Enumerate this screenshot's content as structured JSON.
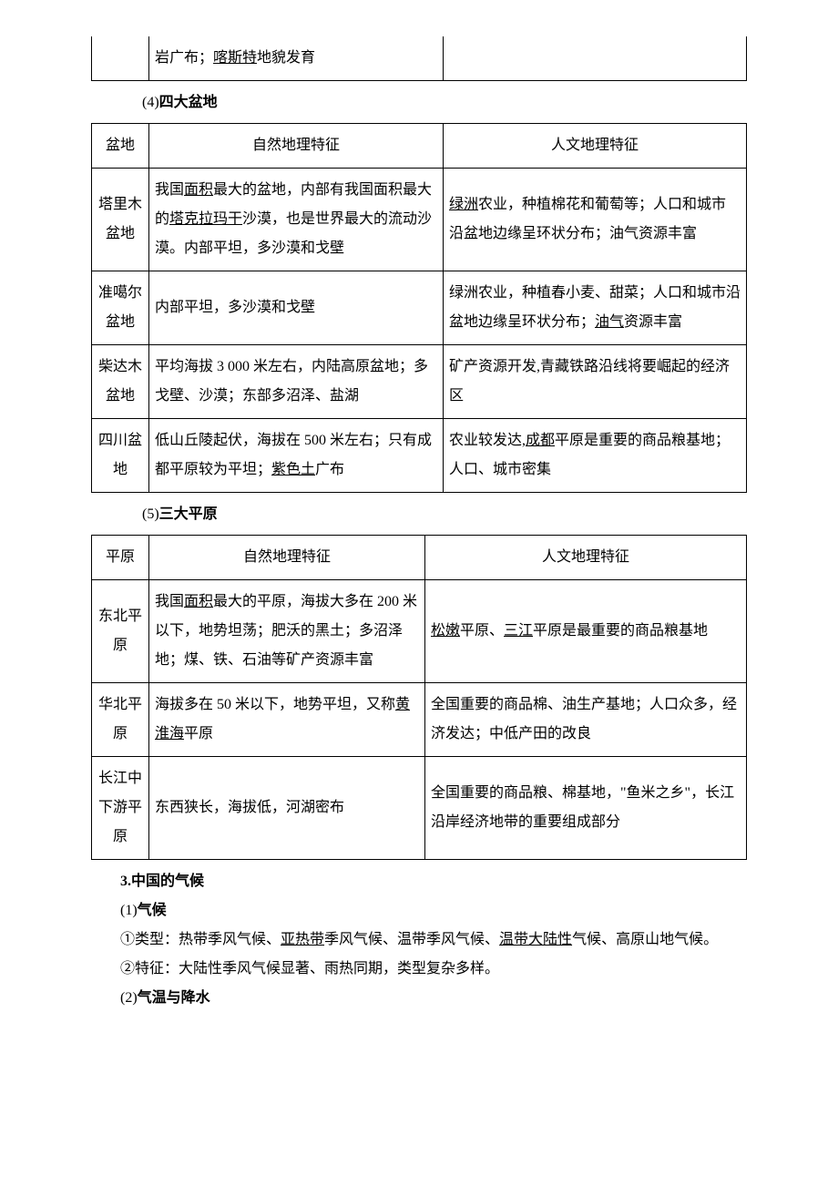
{
  "frag_row": {
    "c1": "",
    "c2_pre": "岩广布；",
    "c2_u": "喀斯特",
    "c2_post": "地貌发育",
    "c3": ""
  },
  "h_basins": "(4)四大盆地",
  "basins": {
    "headers": [
      "盆地",
      "自然地理特征",
      "人文地理特征"
    ],
    "rows": [
      {
        "name": "塔里木盆地",
        "nat_parts": [
          {
            "t": "我国"
          },
          {
            "t": "面积",
            "u": true
          },
          {
            "t": "最大的盆地，内部有我国面积最大的"
          },
          {
            "t": "塔克拉玛干",
            "u": true
          },
          {
            "t": "沙漠，也是世界最大的流动沙漠。内部平坦，多沙漠和戈壁"
          }
        ],
        "hum_parts": [
          {
            "t": "绿洲",
            "u": true
          },
          {
            "t": "农业，种植棉花和葡萄等；人口和城市沿盆地边缘呈环状分布；油气资源丰富"
          }
        ]
      },
      {
        "name": "准噶尔盆地",
        "nat_parts": [
          {
            "t": "内部平坦，多沙漠和戈壁"
          }
        ],
        "hum_parts": [
          {
            "t": "绿洲农业，种植春小麦、甜菜；人口和城市沿盆地边缘呈环状分布；"
          },
          {
            "t": "油气",
            "u": true
          },
          {
            "t": "资源丰富"
          }
        ]
      },
      {
        "name": "柴达木盆地",
        "nat_parts": [
          {
            "t": "平均海拔 3 000 米左右，内陆高原盆地；多戈壁、沙漠；东部多沼泽、盐湖"
          }
        ],
        "hum_parts": [
          {
            "t": "矿产资源开发,青藏铁路沿线将要崛起的经济区"
          }
        ]
      },
      {
        "name": "四川盆地",
        "nat_parts": [
          {
            "t": "低山丘陵起伏，海拔在 500 米左右；只有成都平原较为平坦；"
          },
          {
            "t": "紫色土",
            "u": true
          },
          {
            "t": "广布"
          }
        ],
        "hum_parts": [
          {
            "t": "农业较发达,"
          },
          {
            "t": "成都",
            "u": true
          },
          {
            "t": "平原是重要的商品粮基地；人口、城市密集"
          }
        ]
      }
    ]
  },
  "h_plains": "(5)三大平原",
  "plains": {
    "headers": [
      "平原",
      "自然地理特征",
      "人文地理特征"
    ],
    "rows": [
      {
        "name": "东北平原",
        "nat_parts": [
          {
            "t": "我国"
          },
          {
            "t": "面积",
            "u": true
          },
          {
            "t": "最大的平原，海拔大多在 200 米以下，地势坦荡；肥沃的黑土；多沼泽地；煤、铁、石油等矿产资源丰富"
          }
        ],
        "hum_parts": [
          {
            "t": "松嫩",
            "u": true
          },
          {
            "t": "平原、"
          },
          {
            "t": "三江",
            "u": true
          },
          {
            "t": "平原是最重要的商品粮基地"
          }
        ]
      },
      {
        "name": "华北平原",
        "nat_parts": [
          {
            "t": "海拔多在 50 米以下，地势平坦，又称"
          },
          {
            "t": "黄淮海",
            "u": true
          },
          {
            "t": "平原"
          }
        ],
        "hum_parts": [
          {
            "t": "全国重要的商品棉、油生产基地；人口众多，经济发达；中低产田的改良"
          }
        ]
      },
      {
        "name": "长江中下游平原",
        "nat_parts": [
          {
            "t": "东西狭长，海拔低，河湖密布"
          }
        ],
        "hum_parts": [
          {
            "t": "全国重要的商品粮、棉基地，\"鱼米之乡\"，长江沿岸经济地带的重要组成部分"
          }
        ]
      }
    ]
  },
  "h_climate": "3.中国的气候",
  "h_climate_1": "(1)气候",
  "p1_pre": "①类型：热带季风气候、",
  "p1_u1": "亚热带",
  "p1_mid": "季风气候、温带季风气候、",
  "p1_u2": "温带大陆性",
  "p1_post": "气候、高原山地气候。",
  "p2": "②特征：大陆性季风气候显著、雨热同期，类型复杂多样。",
  "h_climate_2": "(2)气温与降水"
}
